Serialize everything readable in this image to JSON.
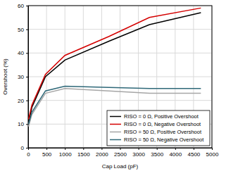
{
  "chart_data": {
    "type": "line",
    "x_label": "Cap Load (pF)",
    "y_label": "Overshoot (%)",
    "x": [
      10,
      100,
      470,
      1000,
      2200,
      3300,
      4700
    ],
    "series": [
      {
        "name": "RISO = 0 Ω, Positive Overshoot",
        "color": "#000000",
        "values": [
          10,
          17,
          30,
          37,
          45,
          52,
          57
        ]
      },
      {
        "name": "RISO = 0 Ω, Negative Overshoot",
        "color": "#d40000",
        "values": [
          12,
          18,
          31,
          39,
          47,
          55,
          59
        ]
      },
      {
        "name": "RISO = 50 Ω, Positive Overshoot",
        "color": "#a6a6a6",
        "values": [
          9,
          14,
          23,
          25,
          24,
          23,
          23
        ]
      },
      {
        "name": "RISO = 50 Ω, Negative Overshoot",
        "color": "#2e6878",
        "values": [
          10,
          15,
          24,
          26,
          25.5,
          25,
          25
        ]
      }
    ],
    "xlim": [
      0,
      5000
    ],
    "xticks": [
      0,
      500,
      1000,
      1500,
      2000,
      2500,
      3000,
      3500,
      4000,
      4500,
      5000
    ],
    "ylim": [
      0,
      60
    ],
    "yticks": [
      0,
      10,
      20,
      30,
      40,
      50,
      60
    ],
    "grid": true,
    "legend": "lower right"
  }
}
